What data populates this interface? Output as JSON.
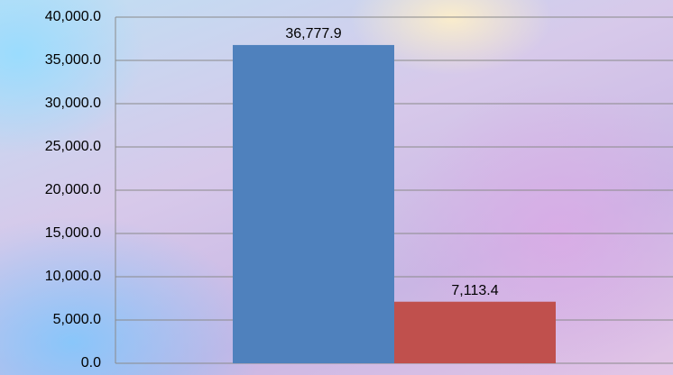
{
  "chart_data": {
    "type": "bar",
    "categories": [
      null
    ],
    "series": [
      {
        "color": "#4f81bd",
        "values": [
          36777.9
        ],
        "value_labels": [
          "36,777.9"
        ]
      },
      {
        "color": "#c0504d",
        "values": [
          7113.4
        ],
        "value_labels": [
          "7,113.4"
        ]
      }
    ],
    "ylim": [
      0,
      40000
    ],
    "yticks": [
      {
        "value": 0,
        "label": "0.0"
      },
      {
        "value": 5000,
        "label": "5,000.0"
      },
      {
        "value": 10000,
        "label": "10,000.0"
      },
      {
        "value": 15000,
        "label": "15,000.0"
      },
      {
        "value": 20000,
        "label": "20,000.0"
      },
      {
        "value": 25000,
        "label": "25,000.0"
      },
      {
        "value": 30000,
        "label": "30,000.0"
      },
      {
        "value": 35000,
        "label": "35,000.0"
      },
      {
        "value": 40000,
        "label": "40,000.0"
      }
    ],
    "grid": true
  }
}
